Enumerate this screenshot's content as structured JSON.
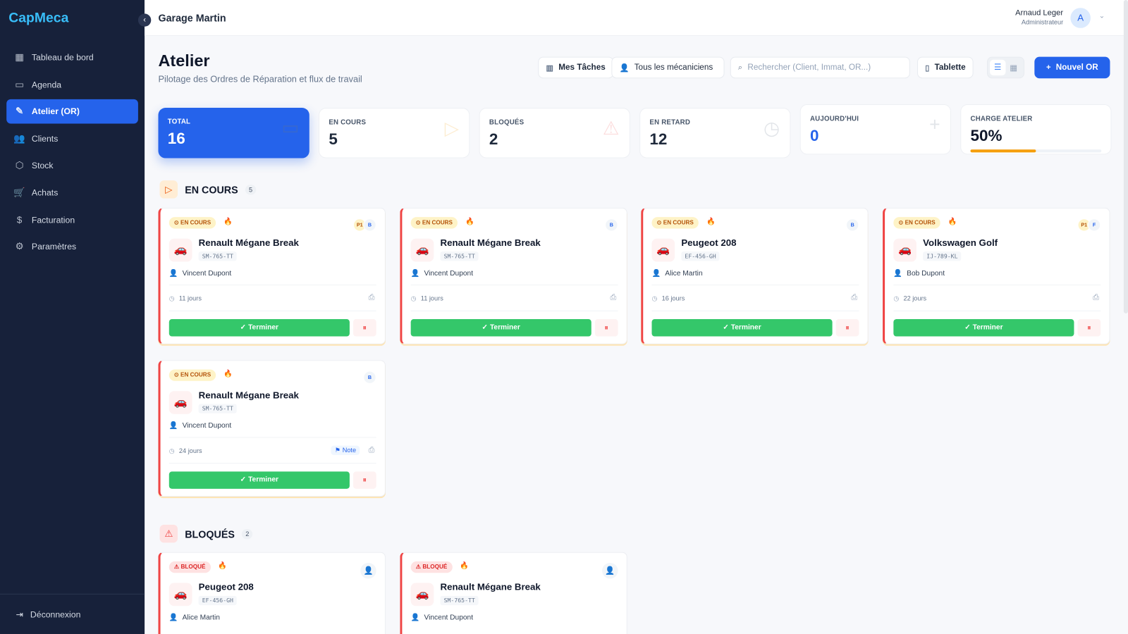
{
  "app": {
    "logo": "CapMeca",
    "garage": "Garage Martin"
  },
  "sidebar": {
    "items": [
      {
        "label": "Tableau de bord",
        "icon": "dashboard-icon",
        "glyph": "▦"
      },
      {
        "label": "Agenda",
        "icon": "calendar-icon",
        "glyph": "▭"
      },
      {
        "label": "Atelier (OR)",
        "icon": "wrench-icon",
        "glyph": "✎",
        "active": true
      },
      {
        "label": "Clients",
        "icon": "users-icon",
        "glyph": "👥"
      },
      {
        "label": "Stock",
        "icon": "box-icon",
        "glyph": "⬡"
      },
      {
        "label": "Achats",
        "icon": "cart-icon",
        "glyph": "🛒"
      },
      {
        "label": "Facturation",
        "icon": "invoice-icon",
        "glyph": "$"
      },
      {
        "label": "Paramètres",
        "icon": "gear-icon",
        "glyph": "⚙"
      }
    ],
    "logout": "Déconnexion"
  },
  "user": {
    "name": "Arnaud Leger",
    "role": "Administrateur",
    "initial": "A"
  },
  "page": {
    "title": "Atelier",
    "subtitle": "Pilotage des Ordres de Réparation et flux de travail"
  },
  "toolbar": {
    "tasks": "Mes Tâches",
    "mechanics": "Tous les mécaniciens",
    "search_placeholder": "Rechercher (Client, Immat, OR...)",
    "tablet": "Tablette",
    "new": "Nouvel OR",
    "view": "list"
  },
  "stats": [
    {
      "label": "TOTAL",
      "value": "16"
    },
    {
      "label": "EN COURS",
      "value": "5"
    },
    {
      "label": "BLOQUÉS",
      "value": "2"
    },
    {
      "label": "EN RETARD",
      "value": "12"
    },
    {
      "label": "AUJOURD'HUI",
      "value": "0"
    },
    {
      "label": "CHARGE ATELIER",
      "value": "50%",
      "progress": 50
    }
  ],
  "colors": {
    "accent": "#2563eb",
    "success": "#34c76a",
    "danger": "#ef4444",
    "warning": "#f59e0b"
  },
  "sections": [
    {
      "title": "EN COURS",
      "count": "5",
      "cards": [
        {
          "badge": "EN COURS",
          "tags": [
            "P1",
            "B"
          ],
          "vehicle": "Renault Mégane Break",
          "plate": "SM-765-TT",
          "client": "Vincent Dupont",
          "days": "11 jours",
          "action": "Terminer"
        },
        {
          "badge": "EN COURS",
          "tags": [
            "B"
          ],
          "vehicle": "Renault Mégane Break",
          "plate": "SM-765-TT",
          "client": "Vincent Dupont",
          "days": "11 jours",
          "action": "Terminer"
        },
        {
          "badge": "EN COURS",
          "tags": [
            "B"
          ],
          "vehicle": "Peugeot 208",
          "plate": "EF-456-GH",
          "client": "Alice Martin",
          "days": "16 jours",
          "action": "Terminer"
        },
        {
          "badge": "EN COURS",
          "tags": [
            "P1",
            "F"
          ],
          "vehicle": "Volkswagen Golf",
          "plate": "IJ-789-KL",
          "client": "Bob Dupont",
          "days": "22 jours",
          "action": "Terminer"
        },
        {
          "badge": "EN COURS",
          "tags": [
            "B"
          ],
          "vehicle": "Renault Mégane Break",
          "plate": "SM-765-TT",
          "client": "Vincent Dupont",
          "days": "24 jours",
          "note": "Note",
          "action": "Terminer"
        }
      ]
    },
    {
      "title": "BLOQUÉS",
      "count": "2",
      "cards": [
        {
          "badge": "BLOQUÉ",
          "vehicle": "Peugeot 208",
          "plate": "EF-456-GH",
          "client": "Alice Martin"
        },
        {
          "badge": "BLOQUÉ",
          "vehicle": "Renault Mégane Break",
          "plate": "SM-765-TT",
          "client": "Vincent Dupont"
        }
      ]
    }
  ]
}
